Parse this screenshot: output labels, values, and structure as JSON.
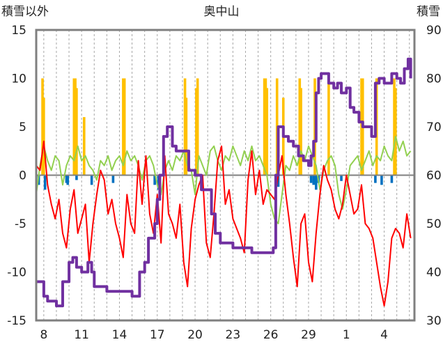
{
  "chart_data": {
    "type": "line",
    "title": "奥中山",
    "left_axis_label": "積雪以外",
    "right_axis_label": "積雪",
    "left_ylim": [
      -15,
      15
    ],
    "left_yticks": [
      15,
      10,
      5,
      0,
      -5,
      -10,
      -15
    ],
    "right_ylim": [
      30,
      90
    ],
    "right_yticks": [
      90,
      80,
      70,
      60,
      50,
      40,
      30
    ],
    "x_tick_labels": [
      "8",
      "11",
      "14",
      "17",
      "20",
      "23",
      "26",
      "29",
      "1",
      "4"
    ],
    "x_tick_days": [
      7,
      10,
      13,
      16,
      19,
      22,
      25,
      28,
      31,
      34
    ],
    "xlim": [
      6.4,
      36.4
    ],
    "grid": "vertical dashed daily lines",
    "colors": {
      "snow_depth": "#7030a0",
      "temperature": "#ff0000",
      "precipitation_rain": "#ffc000",
      "snowfall": "#0070c0",
      "wind_other": "#92d050"
    },
    "series": [
      {
        "key": "snow_depth",
        "axis": "right",
        "x": [
          6.4,
          6.8,
          7.0,
          7.3,
          7.6,
          8.0,
          8.2,
          8.5,
          9.0,
          9.3,
          9.6,
          10.0,
          10.2,
          10.5,
          10.8,
          11.0,
          11.2,
          11.6,
          12.0,
          12.5,
          13.0,
          13.5,
          14.0,
          14.3,
          14.6,
          15.0,
          15.3,
          15.5,
          15.8,
          16.0,
          16.2,
          16.5,
          16.8,
          17.2,
          17.5,
          18.0,
          18.5,
          19.0,
          19.5,
          20.0,
          20.3,
          20.6,
          21.0,
          21.5,
          22.0,
          22.5,
          23.0,
          23.5,
          24.0,
          24.5,
          25.0,
          25.2,
          25.4,
          25.6,
          26.0,
          26.4,
          26.8,
          27.2,
          27.6,
          28.0,
          28.2,
          28.4,
          28.6,
          28.8,
          29.0,
          29.3,
          29.6,
          30.0,
          30.3,
          30.6,
          31.0,
          31.3,
          31.6,
          32.0,
          32.3,
          32.6,
          33.0,
          33.3,
          33.6,
          34.0,
          34.3,
          34.6,
          35.0,
          35.3,
          35.6,
          35.9,
          36.1
        ],
        "values": [
          38,
          38,
          35,
          34,
          34,
          33,
          33,
          38,
          42,
          43,
          41,
          40,
          40,
          42,
          40,
          37,
          37,
          37,
          36,
          36,
          36,
          36,
          35,
          35,
          40,
          42,
          47,
          47,
          50,
          55,
          60,
          68,
          70,
          66,
          65,
          65,
          61,
          60,
          57,
          57,
          52,
          48,
          46,
          46,
          45,
          45,
          45,
          44,
          44,
          44,
          44,
          45,
          60,
          70,
          68,
          67,
          66,
          64,
          63,
          62,
          64,
          67,
          77,
          80,
          81,
          81,
          79,
          78,
          79,
          77,
          78,
          74,
          73,
          71,
          70,
          70,
          68,
          79,
          80,
          79,
          79,
          81,
          80,
          79,
          82,
          84,
          80
        ]
      },
      {
        "key": "temperature",
        "axis": "left",
        "x": [
          6.4,
          6.7,
          7.0,
          7.3,
          7.6,
          7.9,
          8.2,
          8.5,
          8.8,
          9.1,
          9.4,
          9.7,
          10.0,
          10.3,
          10.6,
          10.9,
          11.2,
          11.5,
          11.8,
          12.1,
          12.4,
          12.7,
          13.0,
          13.3,
          13.6,
          13.9,
          14.2,
          14.5,
          14.8,
          15.1,
          15.4,
          15.7,
          16.0,
          16.3,
          16.6,
          16.9,
          17.2,
          17.5,
          17.8,
          18.1,
          18.4,
          18.7,
          19.0,
          19.3,
          19.6,
          19.9,
          20.2,
          20.5,
          20.8,
          21.1,
          21.4,
          21.7,
          22.0,
          22.3,
          22.6,
          22.9,
          23.2,
          23.5,
          23.8,
          24.1,
          24.4,
          24.7,
          25.0,
          25.3,
          25.6,
          25.9,
          26.2,
          26.5,
          26.8,
          27.1,
          27.4,
          27.7,
          28.0,
          28.3,
          28.6,
          28.9,
          29.2,
          29.5,
          29.8,
          30.1,
          30.4,
          30.7,
          31.0,
          31.3,
          31.6,
          31.9,
          32.2,
          32.5,
          32.8,
          33.1,
          33.4,
          33.7,
          34.0,
          34.3,
          34.6,
          34.9,
          35.2,
          35.5,
          35.8,
          36.1
        ],
        "values": [
          1.0,
          0.5,
          3.5,
          -1.0,
          -3.0,
          -4.5,
          -2.5,
          -6.0,
          -7.5,
          -3.5,
          -1.5,
          -6.0,
          -4.5,
          -3.0,
          -9.0,
          -5.0,
          -2.0,
          0.5,
          -0.5,
          -4.0,
          -2.5,
          -5.0,
          -6.5,
          -8.5,
          -2.0,
          -5.0,
          -6.0,
          1.5,
          -3.0,
          2.0,
          -4.0,
          -6.0,
          -2.0,
          -7.0,
          2.0,
          -4.0,
          -5.0,
          -6.5,
          -3.0,
          -9.0,
          -11.5,
          -5.5,
          -2.5,
          -1.0,
          0.0,
          -7.0,
          -8.5,
          -4.0,
          1.5,
          3.0,
          -3.0,
          -1.5,
          -4.5,
          -5.5,
          -6.5,
          -8.0,
          -0.5,
          2.5,
          -2.0,
          0.5,
          -3.0,
          -1.5,
          -2.0,
          -2.5,
          0.0,
          2.0,
          -2.0,
          -5.0,
          -8.5,
          -11.5,
          -5.0,
          -4.0,
          -9.0,
          -11.0,
          -6.0,
          -2.0,
          1.0,
          -0.5,
          -1.5,
          -3.5,
          -4.5,
          -3.0,
          0.0,
          -2.0,
          -4.0,
          -3.5,
          -1.0,
          -5.0,
          -5.5,
          -6.5,
          -9.0,
          -11.5,
          -13.5,
          -11.0,
          -6.5,
          -5.5,
          -6.0,
          -7.5,
          -4.0,
          -6.5
        ]
      },
      {
        "key": "wind_other",
        "axis": "left",
        "x": [
          6.4,
          6.7,
          7.0,
          7.3,
          7.6,
          7.9,
          8.2,
          8.5,
          8.8,
          9.1,
          9.4,
          9.7,
          10.0,
          10.3,
          10.6,
          10.9,
          11.2,
          11.5,
          11.8,
          12.1,
          12.4,
          12.7,
          13.0,
          13.3,
          13.6,
          13.9,
          14.2,
          14.5,
          14.8,
          15.1,
          15.4,
          15.7,
          16.0,
          16.3,
          16.6,
          16.9,
          17.2,
          17.5,
          17.8,
          18.1,
          18.4,
          18.7,
          19.0,
          19.3,
          19.6,
          19.9,
          20.2,
          20.5,
          20.8,
          21.1,
          21.4,
          21.7,
          22.0,
          22.3,
          22.6,
          22.9,
          23.2,
          23.5,
          23.8,
          24.1,
          24.4,
          24.7,
          25.0,
          25.3,
          25.6,
          25.9,
          26.2,
          26.5,
          26.8,
          27.1,
          27.4,
          27.7,
          28.0,
          28.3,
          28.6,
          28.9,
          29.2,
          29.5,
          29.8,
          30.1,
          30.4,
          30.7,
          31.0,
          31.3,
          31.6,
          31.9,
          32.2,
          32.5,
          32.8,
          33.1,
          33.4,
          33.7,
          34.0,
          34.3,
          34.6,
          34.9,
          35.2,
          35.5,
          35.8,
          36.1
        ],
        "values": [
          -2.0,
          1.0,
          3.0,
          1.5,
          0.5,
          2.0,
          1.5,
          -1.0,
          1.0,
          2.0,
          1.5,
          3.0,
          1.5,
          2.0,
          1.0,
          0.5,
          -0.5,
          1.5,
          1.0,
          2.0,
          0.5,
          1.5,
          2.0,
          1.0,
          2.5,
          1.5,
          2.0,
          1.0,
          -0.5,
          1.5,
          2.0,
          1.0,
          -1.0,
          -2.0,
          0.5,
          1.5,
          0.5,
          2.0,
          1.5,
          2.5,
          1.0,
          0.5,
          -2.0,
          2.0,
          1.0,
          0.0,
          2.5,
          3.0,
          1.5,
          0.5,
          2.0,
          1.5,
          3.0,
          2.0,
          1.0,
          2.5,
          1.5,
          3.0,
          1.5,
          2.0,
          1.0,
          0.0,
          -3.0,
          -4.5,
          -5.0,
          -2.0,
          1.0,
          0.5,
          2.0,
          1.0,
          2.5,
          1.5,
          3.0,
          2.0,
          1.0,
          -1.5,
          0.5,
          1.5,
          2.0,
          1.0,
          -2.0,
          -3.5,
          -1.5,
          1.0,
          1.5,
          2.0,
          0.5,
          1.5,
          2.5,
          1.0,
          2.0,
          1.5,
          3.0,
          2.0,
          1.5,
          4.0,
          2.5,
          3.5,
          2.0,
          2.5
        ]
      }
    ],
    "bars": [
      {
        "key": "precipitation_rain",
        "axis": "left",
        "x": [
          6.9,
          7.0,
          9.4,
          9.5,
          9.6,
          10.2,
          13.3,
          13.4,
          18.2,
          18.3,
          19.1,
          19.2,
          24.5,
          24.6,
          24.7,
          25.5,
          26.0,
          27.3,
          27.4,
          28.5,
          29.6,
          32.2,
          32.3,
          33.4,
          34.8,
          34.9
        ],
        "values": [
          10,
          8,
          10,
          10,
          9,
          6,
          10,
          10,
          10,
          8,
          9,
          10,
          10,
          10,
          9,
          10,
          8,
          10,
          9,
          10,
          10,
          10,
          10,
          10,
          10,
          9
        ]
      },
      {
        "key": "snowfall",
        "axis": "left",
        "x": [
          6.6,
          7.1,
          8.8,
          8.9,
          9.6,
          10.8,
          12.5,
          15.8,
          16.1,
          25.4,
          25.6,
          28.2,
          28.4,
          28.6,
          28.8,
          30.6,
          33.3,
          33.8,
          34.6
        ],
        "values": [
          -1.0,
          -1.5,
          -0.8,
          -1.0,
          -0.5,
          -1.0,
          -0.8,
          -1.0,
          -1.5,
          -0.8,
          -1.2,
          -0.8,
          -1.0,
          -1.5,
          -0.8,
          -0.6,
          -0.8,
          -1.0,
          -0.8
        ]
      }
    ]
  }
}
